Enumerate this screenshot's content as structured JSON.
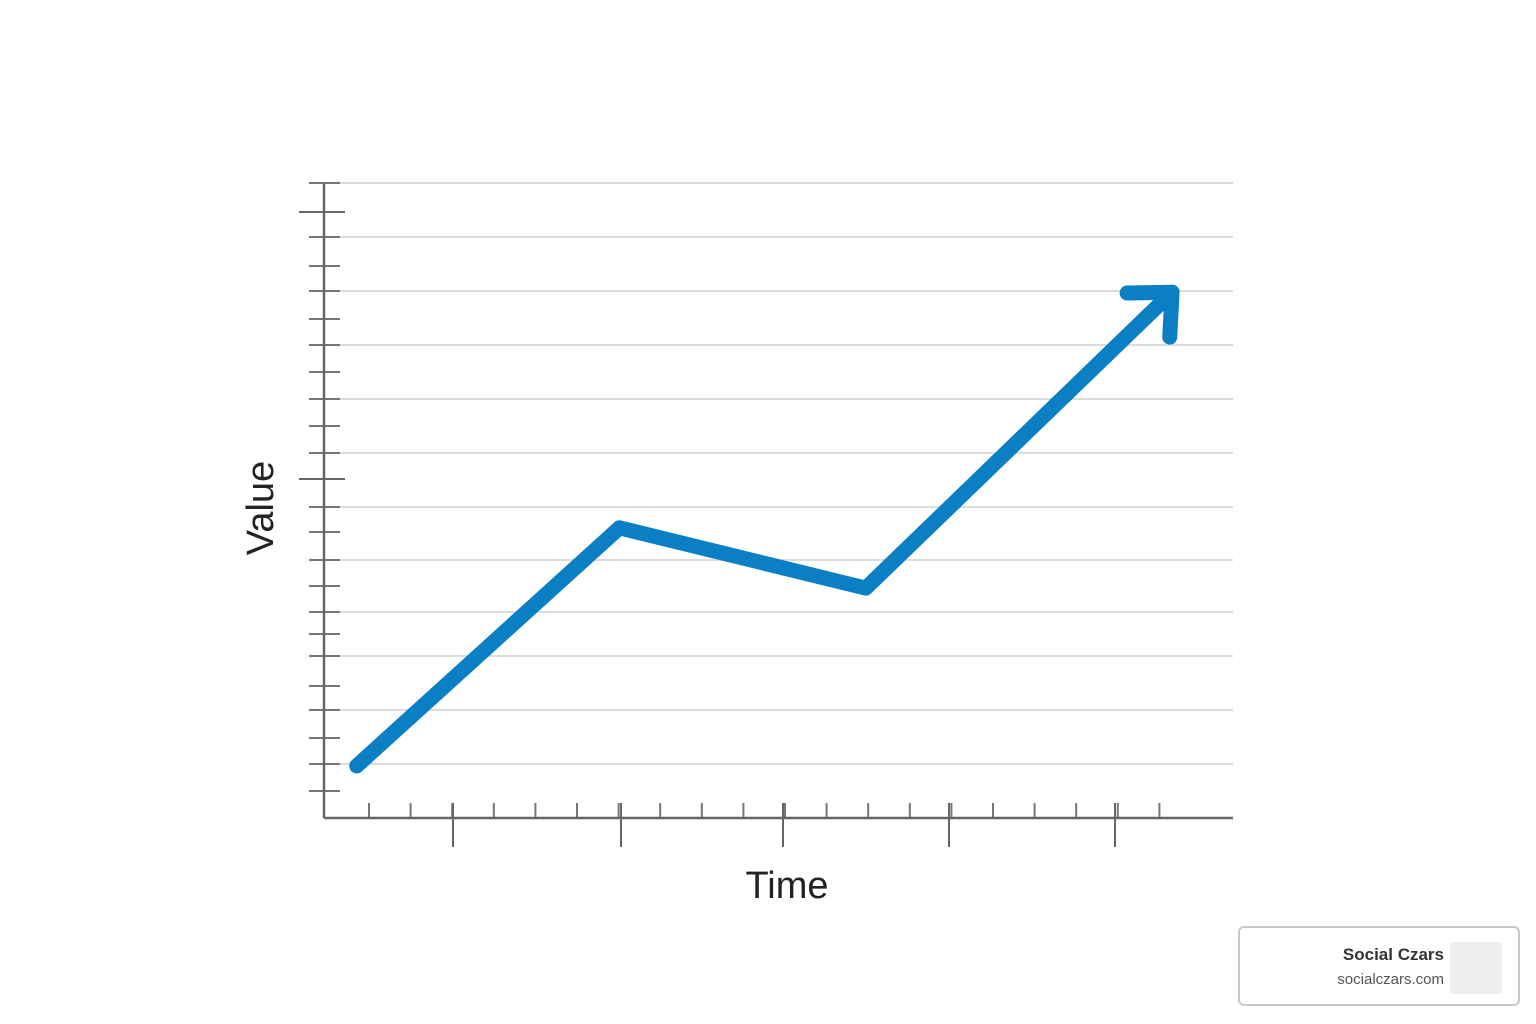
{
  "chart_data": {
    "type": "line",
    "xlabel": "Time",
    "ylabel": "Value",
    "x": [
      0.36,
      3.25,
      5.96,
      9.33
    ],
    "values": [
      0.82,
      4.57,
      3.62,
      8.28
    ],
    "color": "#0a7fc4",
    "xlim": [
      0,
      10
    ],
    "ylim": [
      0,
      10
    ],
    "grid": true
  },
  "watermark": {
    "name": "Social Czars",
    "url": "socialczars.com"
  }
}
